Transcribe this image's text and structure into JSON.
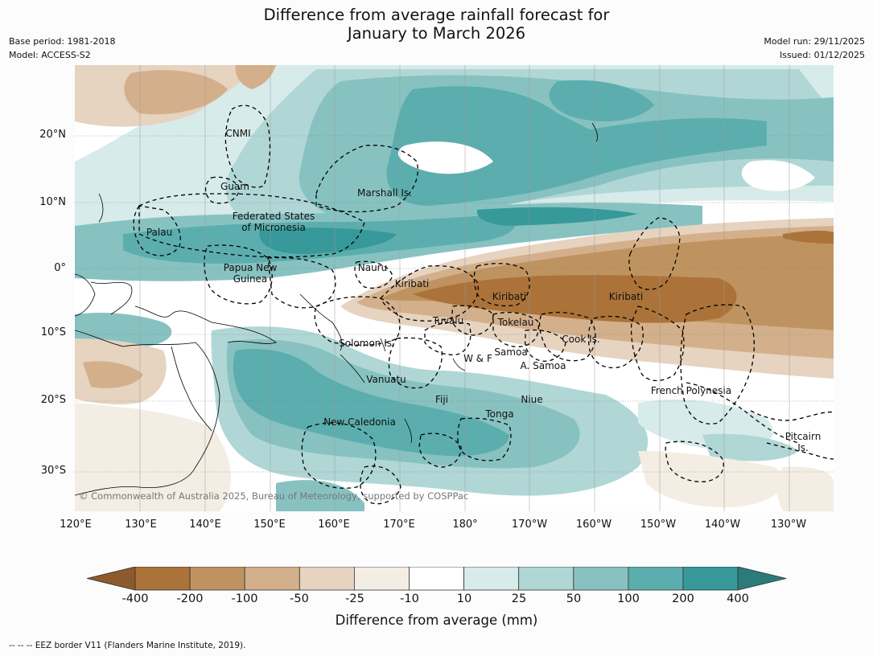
{
  "title_line1": "Difference from average rainfall forecast for",
  "title_line2": "January to March 2026",
  "meta": {
    "base_period": "Base period: 1981-2018",
    "model": "Model: ACCESS-S2",
    "model_run": "Model run: 29/11/2025",
    "issued": "Issued: 01/12/2025"
  },
  "map": {
    "copyright": "© Commonwealth of Australia 2025, Bureau of Meteorology, supported by COSPPac",
    "lat_labels": [
      "20°N",
      "10°N",
      "0°",
      "10°S",
      "20°S",
      "30°S"
    ],
    "lon_labels": [
      "120°E",
      "130°E",
      "140°E",
      "150°E",
      "160°E",
      "170°E",
      "180°",
      "170°W",
      "160°W",
      "150°W",
      "140°W",
      "130°W"
    ],
    "regions": [
      "CNMI",
      "Guam",
      "Marshall Is.",
      "Federated States",
      "of Micronesia",
      "Palau",
      "Papua New",
      "Guinea",
      "Nauru",
      "Kiribati",
      "Kiribati",
      "Kiribati",
      "Tuvalu",
      "Tokelau",
      "Cook Is.",
      "Solomon Is.",
      "W & F",
      "Samoa",
      "A. Samoa",
      "Vanuatu",
      "Fiji",
      "Niue",
      "Tonga",
      "New Caledonia",
      "French Polynesia",
      "Pitcairn",
      "Is."
    ]
  },
  "colorbar": {
    "labels": [
      "-400",
      "-200",
      "-100",
      "-50",
      "-25",
      "-10",
      "10",
      "25",
      "50",
      "100",
      "200",
      "400"
    ],
    "colors": [
      "#8c5a2b",
      "#ab7339",
      "#bf935f",
      "#d3b08b",
      "#e6d3c0",
      "#f4ede4",
      "#ffffff",
      "#d7ebea",
      "#b0d7d6",
      "#87c2c1",
      "#5caeae",
      "#379999",
      "#2c7b7b"
    ],
    "title": "Difference from average (mm)"
  },
  "footnote": "--  --  -- EEZ border V11 (Flanders Marine Institute, 2019)."
}
